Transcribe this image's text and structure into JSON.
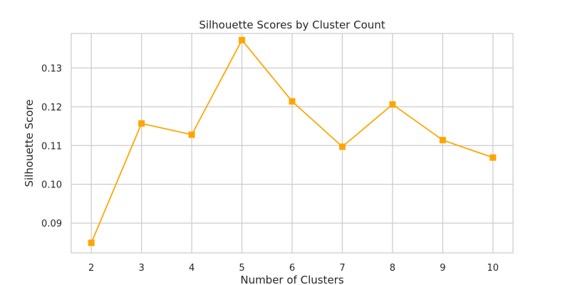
{
  "chart_data": {
    "type": "line",
    "title": "Silhouette Scores by Cluster Count",
    "xlabel": "Number of Clusters",
    "ylabel": "Silhouette Score",
    "x": [
      2,
      3,
      4,
      5,
      6,
      7,
      8,
      9,
      10
    ],
    "series": [
      {
        "values": [
          0.0849,
          0.1157,
          0.1128,
          0.1372,
          0.1214,
          0.1097,
          0.1206,
          0.1114,
          0.1069
        ],
        "color": "#FFA500",
        "marker": "square"
      }
    ],
    "xlim": [
      1.6,
      10.4
    ],
    "ylim": [
      0.0823,
      0.1389
    ],
    "xticks": [
      2,
      3,
      4,
      5,
      6,
      7,
      8,
      9,
      10
    ],
    "yticks": [
      0.09,
      0.1,
      0.11,
      0.12,
      0.13
    ],
    "ytick_labels": [
      "0.09",
      "0.10",
      "0.11",
      "0.12",
      "0.13"
    ],
    "grid": true,
    "grid_color": "#cccccc",
    "spine_color": "#cccccc"
  }
}
